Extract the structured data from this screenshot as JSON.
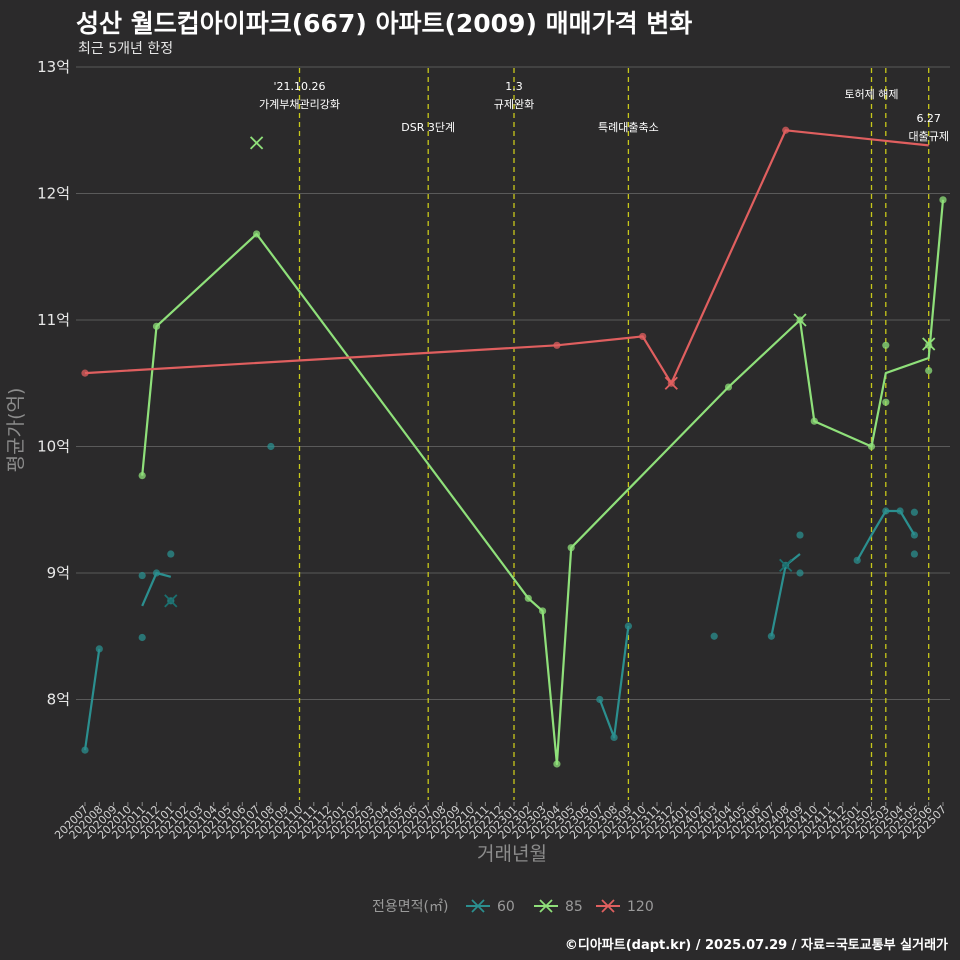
{
  "title": "성산 월드컵아이파크(667) 아파트(2009) 매매가격 변화",
  "subtitle": "최근 5개년 한정",
  "caption": "©디아파트(dapt.kr) / 2025.07.29 / 자료=국토교통부 실거래가",
  "chart_data": {
    "type": "line",
    "xlabel": "거래년월",
    "ylabel": "평균가(억)",
    "ylim": [
      7.3,
      13.0
    ],
    "yticks": [
      8,
      9,
      10,
      11,
      12,
      13
    ],
    "ytick_labels": [
      "8억",
      "9억",
      "10억",
      "11억",
      "12억",
      "13억"
    ],
    "categories": [
      "202007",
      "202008",
      "202009",
      "202010",
      "202011",
      "202012",
      "202101",
      "202102",
      "202103",
      "202104",
      "202105",
      "202106",
      "202107",
      "202108",
      "202109",
      "202110",
      "202111",
      "202112",
      "202201",
      "202202",
      "202203",
      "202204",
      "202205",
      "202206",
      "202207",
      "202208",
      "202209",
      "202210",
      "202211",
      "202212",
      "202301",
      "202302",
      "202303",
      "202304",
      "202305",
      "202306",
      "202307",
      "202308",
      "202309",
      "202310",
      "202311",
      "202312",
      "202401",
      "202402",
      "202403",
      "202404",
      "202405",
      "202406",
      "202407",
      "202408",
      "202409",
      "202410",
      "202411",
      "202412",
      "202501",
      "202502",
      "202503",
      "202504",
      "202505",
      "202506",
      "202507"
    ],
    "legend": {
      "title": "전용면적(㎡)",
      "position": "bottom"
    },
    "series": [
      {
        "name": "60",
        "color": "#2b8f8f",
        "line": [
          [
            "202007",
            7.6
          ],
          [
            "202008",
            8.4
          ],
          null,
          [
            "202011",
            8.74
          ],
          [
            "202012",
            9.0
          ],
          [
            "202101",
            8.97
          ],
          null,
          [
            "202307",
            8.0
          ],
          [
            "202308",
            7.7
          ],
          [
            "202309",
            8.58
          ],
          null,
          [
            "202407",
            8.5
          ],
          [
            "202408",
            9.06
          ],
          [
            "202409",
            9.15
          ],
          null,
          [
            "202501",
            9.1
          ],
          [
            "202502",
            9.3
          ],
          [
            "202503",
            9.49
          ],
          [
            "202504",
            9.49
          ],
          [
            "202505",
            9.3
          ]
        ],
        "points": [
          [
            "202007",
            7.6
          ],
          [
            "202008",
            8.4
          ],
          [
            "202011",
            8.98
          ],
          [
            "202011",
            8.49
          ],
          [
            "202012",
            9.0
          ],
          [
            "202101",
            9.15
          ],
          [
            "202101",
            8.78
          ],
          [
            "202108",
            10.0
          ],
          [
            "202307",
            8.0
          ],
          [
            "202308",
            7.7
          ],
          [
            "202309",
            8.58
          ],
          [
            "202403",
            8.5
          ],
          [
            "202407",
            8.5
          ],
          [
            "202408",
            9.06
          ],
          [
            "202409",
            9.3
          ],
          [
            "202409",
            9.0
          ],
          [
            "202501",
            9.1
          ],
          [
            "202503",
            9.49
          ],
          [
            "202504",
            9.49
          ],
          [
            "202505",
            9.48
          ],
          [
            "202505",
            9.3
          ],
          [
            "202505",
            9.15
          ]
        ],
        "cancelled": [
          [
            "202101",
            8.78
          ],
          [
            "202408",
            9.06
          ]
        ]
      },
      {
        "name": "85",
        "color": "#8fe07a",
        "line": [
          [
            "202011",
            9.77
          ],
          [
            "202012",
            10.95
          ],
          [
            "202107",
            11.68
          ],
          [
            "202302",
            8.8
          ],
          [
            "202303",
            8.7
          ],
          [
            "202304",
            7.49
          ],
          [
            "202305",
            9.2
          ],
          [
            "202404",
            10.47
          ],
          [
            "202409",
            11.0
          ],
          [
            "202410",
            10.2
          ],
          [
            "202502",
            10.0
          ],
          [
            "202503",
            10.58
          ],
          [
            "202506",
            10.7
          ],
          [
            "202507",
            11.95
          ]
        ],
        "points": [
          [
            "202011",
            9.77
          ],
          [
            "202012",
            10.95
          ],
          [
            "202107",
            11.68
          ],
          [
            "202302",
            8.8
          ],
          [
            "202303",
            8.7
          ],
          [
            "202304",
            7.49
          ],
          [
            "202305",
            9.2
          ],
          [
            "202404",
            10.47
          ],
          [
            "202409",
            11.0
          ],
          [
            "202410",
            10.2
          ],
          [
            "202502",
            10.0
          ],
          [
            "202503",
            10.8
          ],
          [
            "202503",
            10.35
          ],
          [
            "202506",
            10.6
          ],
          [
            "202506",
            10.8
          ],
          [
            "202507",
            11.95
          ]
        ],
        "cancelled": [
          [
            "202107",
            12.4
          ],
          [
            "202409",
            11.0
          ],
          [
            "202506",
            10.81
          ]
        ]
      },
      {
        "name": "120",
        "color": "#e05f5f",
        "line": [
          [
            "202007",
            10.58
          ],
          [
            "202304",
            10.8
          ],
          [
            "202310",
            10.87
          ],
          [
            "202312",
            10.5
          ],
          [
            "202408",
            12.5
          ],
          [
            "202506",
            12.38
          ]
        ],
        "points": [
          [
            "202007",
            10.58
          ],
          [
            "202304",
            10.8
          ],
          [
            "202310",
            10.87
          ],
          [
            "202312",
            10.5
          ],
          [
            "202408",
            12.5
          ]
        ],
        "cancelled": [
          [
            "202312",
            10.5
          ]
        ]
      }
    ],
    "events": [
      {
        "month": "202110",
        "label1": "'21.10.26",
        "label2": "가계부채관리강화",
        "row": 0
      },
      {
        "month": "202207",
        "label1": "DSR 3단계",
        "label2": "",
        "row": 1
      },
      {
        "month": "202301",
        "label1": "1.3",
        "label2": "규제완화",
        "row": 0
      },
      {
        "month": "202309",
        "label1": "특례대출축소",
        "label2": "",
        "row": 1
      },
      {
        "month": "202502",
        "label1": "토허제 해제",
        "label2": "",
        "row": 2
      },
      {
        "month": "202503",
        "label1": "",
        "label2": "",
        "row": 2
      },
      {
        "month": "202506",
        "label1": "6.27",
        "label2": "대출규제",
        "row": 3
      }
    ]
  }
}
